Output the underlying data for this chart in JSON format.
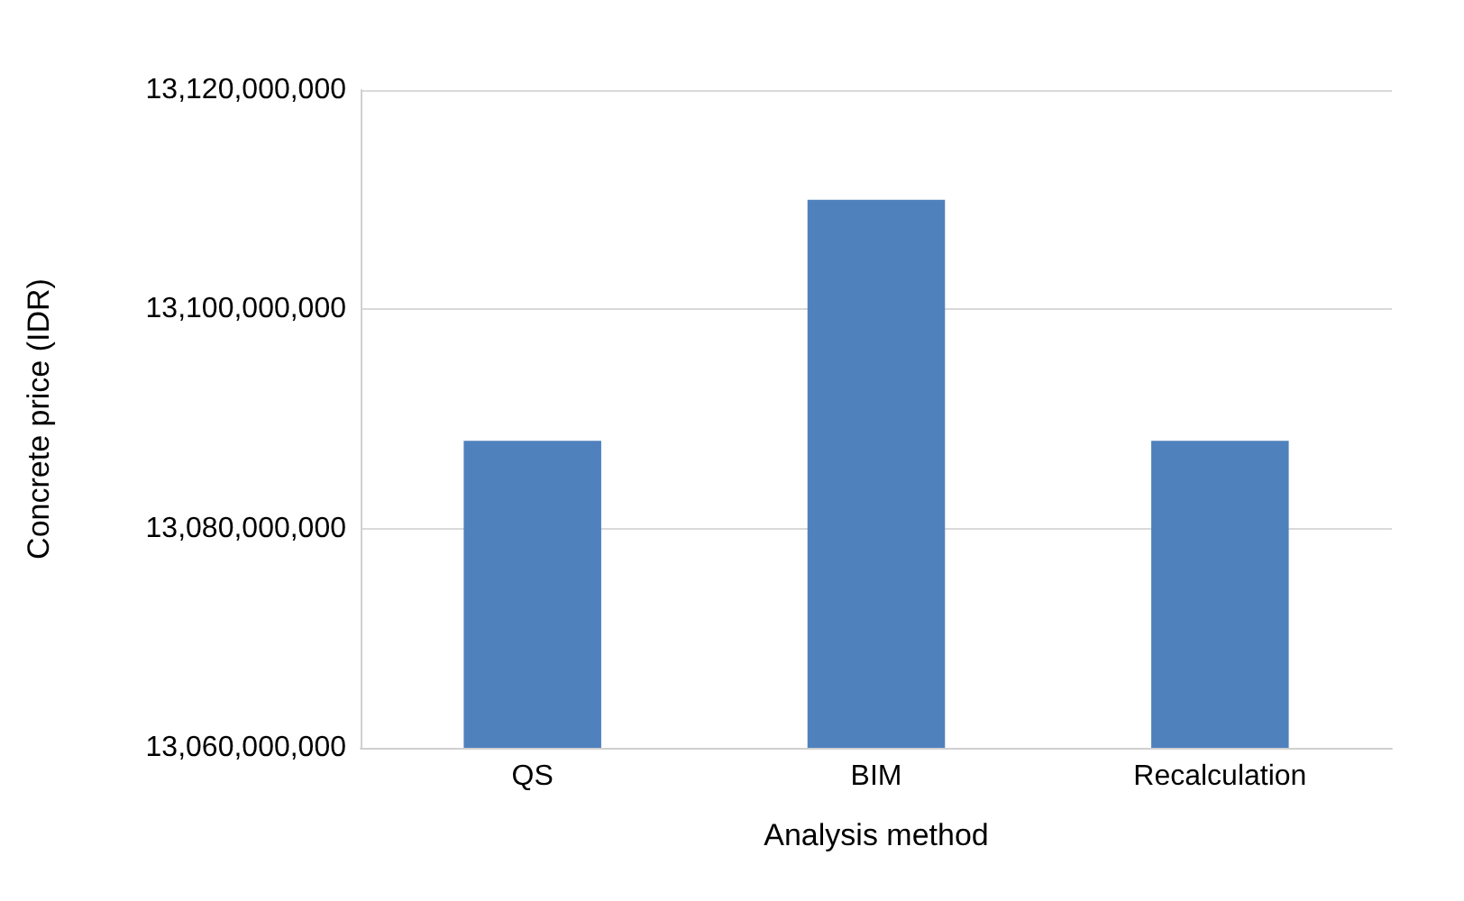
{
  "chart_data": {
    "type": "bar",
    "xlabel": "Analysis method",
    "ylabel": "Concrete price (IDR)",
    "categories": [
      "QS",
      "BIM",
      "Recalculation"
    ],
    "values": [
      13088000000,
      13110000000,
      13088000000
    ],
    "color": "#4f81bd",
    "ylim": [
      13060000000,
      13120000000
    ],
    "yticks": [
      {
        "value": 13060000000,
        "label": "13,060,000,000"
      },
      {
        "value": 13080000000,
        "label": "13,080,000,000"
      },
      {
        "value": 13100000000,
        "label": "13,100,000,000"
      },
      {
        "value": 13120000000,
        "label": "13,120,000,000"
      }
    ],
    "grid": "y"
  }
}
